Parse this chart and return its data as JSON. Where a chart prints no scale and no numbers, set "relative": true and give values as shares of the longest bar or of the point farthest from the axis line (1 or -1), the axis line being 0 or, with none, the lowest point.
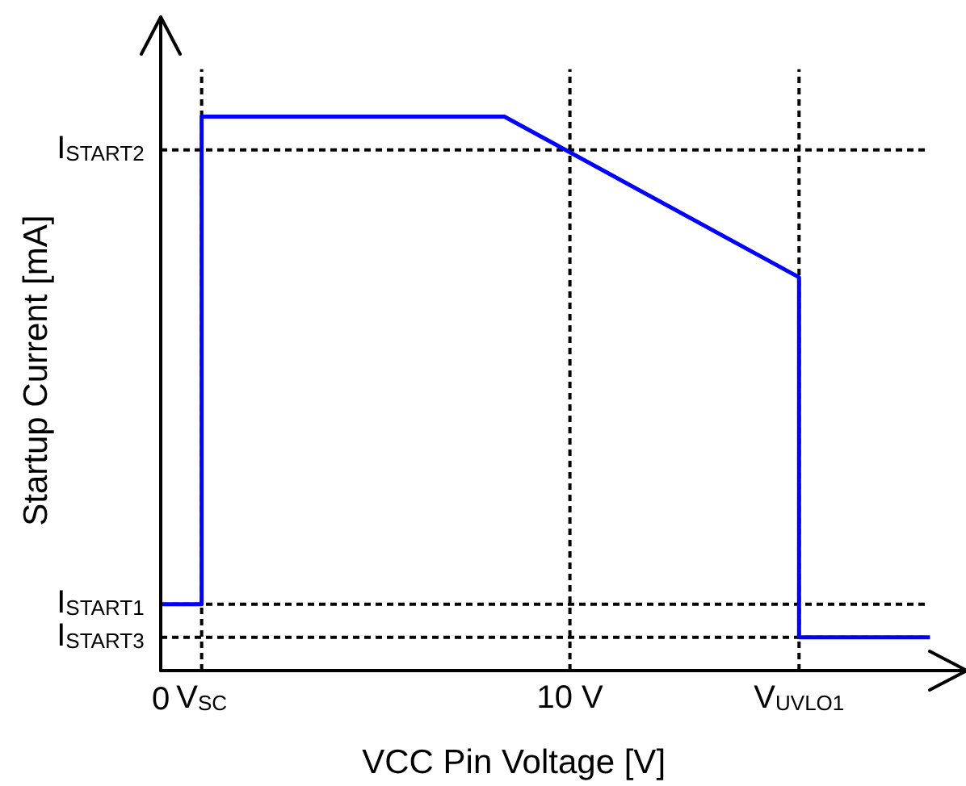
{
  "chart_data": {
    "type": "line",
    "xlabel": "VCC Pin Voltage [V]",
    "ylabel": "Startup Current [mA]",
    "relative": true,
    "line_style": "solid",
    "xlim": [
      0,
      19.7
    ],
    "xticks": [
      0,
      {
        "value": 1.0,
        "label": "V$_{SC}$"
      },
      {
        "value": 10,
        "label": "10 V"
      },
      {
        "value": 15.6,
        "label": "V$_{UVLO1}$"
      }
    ],
    "series": [
      {
        "color": "#0000ff",
        "x": [
          0,
          1.0,
          1.0,
          8.4,
          15.6,
          15.6,
          18.8
        ],
        "values": [
          0.12,
          0.12,
          1,
          1,
          0.71,
          0.06,
          0.06
        ]
      }
    ],
    "ref_lines": [
      {
        "axis": "y",
        "value": 0.94,
        "label": "I$_{START2}$",
        "color": "#000000",
        "line_style": "dashed"
      },
      {
        "axis": "y",
        "value": 0.12,
        "label": "I$_{START1}$",
        "color": "#000000",
        "line_style": "dashed"
      },
      {
        "axis": "y",
        "value": 0.06,
        "label": "I$_{START3}$",
        "color": "#000000",
        "line_style": "dashed"
      },
      {
        "axis": "x",
        "value": 1.0,
        "color": "#000000",
        "line_style": "dashed"
      },
      {
        "axis": "x",
        "value": 10,
        "color": "#000000",
        "line_style": "dashed"
      },
      {
        "axis": "x",
        "value": 15.6,
        "color": "#000000",
        "line_style": "dashed"
      }
    ]
  }
}
